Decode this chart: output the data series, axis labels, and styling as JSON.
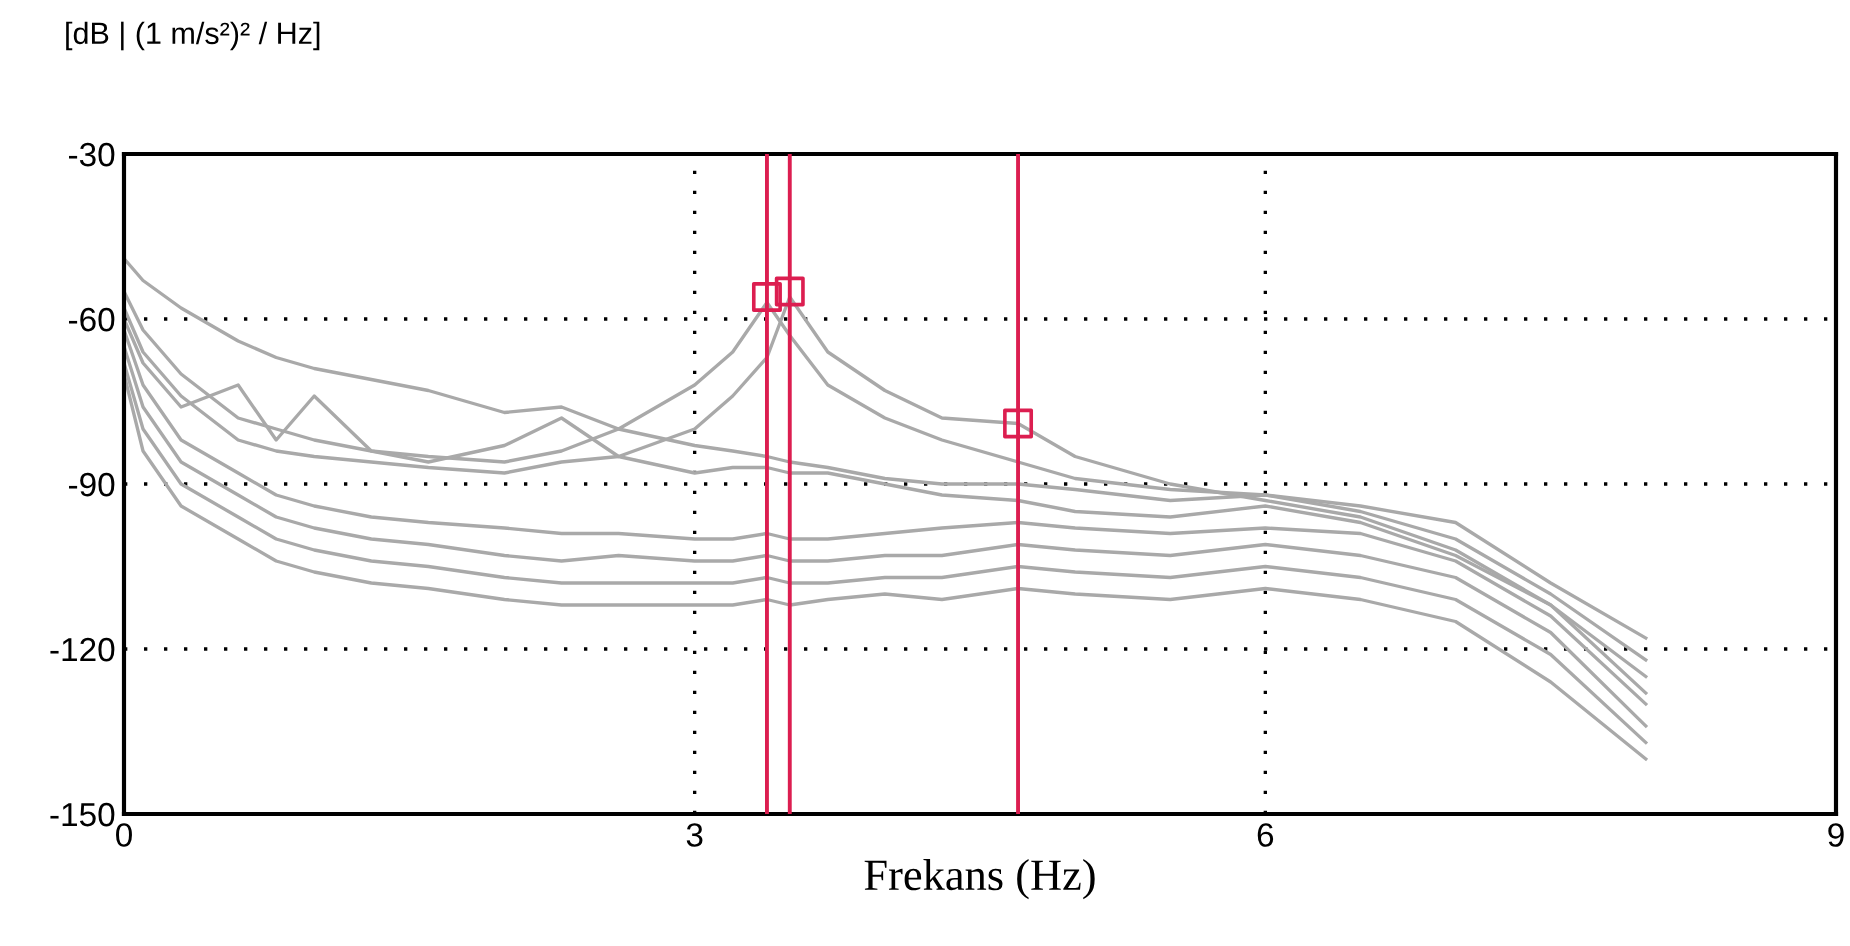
{
  "chart_data": {
    "type": "line",
    "ylabel": "[dB | (1 m/s²)² / Hz]",
    "xlabel": "Frekans (Hz)",
    "x": [
      0,
      0.1,
      0.3,
      0.6,
      0.8,
      1,
      1.3,
      1.6,
      2,
      2.3,
      2.6,
      3,
      3.2,
      3.38,
      3.5,
      3.7,
      4,
      4.3,
      4.7,
      5,
      5.5,
      6,
      6.5,
      7,
      7.5,
      8
    ],
    "xlim": [
      0,
      9
    ],
    "xticks": [
      0,
      3,
      6,
      9
    ],
    "ylim": [
      -150,
      -30
    ],
    "yticks": [
      -150,
      -120,
      -90,
      -60,
      -30
    ],
    "grid": true,
    "line_style": "solid",
    "series": [
      {
        "color": "#a9a9a9",
        "values": [
          -49,
          -53,
          -58,
          -64,
          -67,
          -69,
          -71,
          -73,
          -77,
          -76,
          -80,
          -83,
          -84,
          -85,
          -86,
          -87,
          -89,
          -90,
          -90,
          -91,
          -93,
          -92,
          -94,
          -97,
          -108,
          -118
        ]
      },
      {
        "color": "#a9a9a9",
        "values": [
          -55,
          -62,
          -70,
          -78,
          -80,
          -82,
          -84,
          -85,
          -86,
          -84,
          -80,
          -72,
          -66,
          -57,
          -63,
          -72,
          -78,
          -82,
          -86,
          -89,
          -91,
          -92,
          -95,
          -100,
          -110,
          -122
        ]
      },
      {
        "color": "#a9a9a9",
        "values": [
          -58,
          -66,
          -74,
          -82,
          -84,
          -85,
          -86,
          -87,
          -88,
          -86,
          -85,
          -80,
          -74,
          -67,
          -56,
          -66,
          -73,
          -78,
          -79,
          -85,
          -90,
          -93,
          -96,
          -102,
          -112,
          -125
        ]
      },
      {
        "color": "#a9a9a9",
        "values": [
          -60,
          -68,
          -76,
          -72,
          -82,
          -74,
          -84,
          -86,
          -83,
          -78,
          -85,
          -88,
          -87,
          -87,
          -88,
          -88,
          -90,
          -92,
          -93,
          -95,
          -96,
          -94,
          -97,
          -103,
          -112,
          -128
        ]
      },
      {
        "color": "#a9a9a9",
        "values": [
          -62,
          -72,
          -82,
          -88,
          -92,
          -94,
          -96,
          -97,
          -98,
          -99,
          -99,
          -100,
          -100,
          -99,
          -100,
          -100,
          -99,
          -98,
          -97,
          -98,
          -99,
          -98,
          -99,
          -104,
          -114,
          -130
        ]
      },
      {
        "color": "#a9a9a9",
        "values": [
          -65,
          -76,
          -86,
          -92,
          -96,
          -98,
          -100,
          -101,
          -103,
          -104,
          -103,
          -104,
          -104,
          -103,
          -104,
          -104,
          -103,
          -103,
          -101,
          -102,
          -103,
          -101,
          -103,
          -107,
          -117,
          -134
        ]
      },
      {
        "color": "#a9a9a9",
        "values": [
          -68,
          -80,
          -90,
          -96,
          -100,
          -102,
          -104,
          -105,
          -107,
          -108,
          -108,
          -108,
          -108,
          -107,
          -108,
          -108,
          -107,
          -107,
          -105,
          -106,
          -107,
          -105,
          -107,
          -111,
          -121,
          -137
        ]
      },
      {
        "color": "#a9a9a9",
        "values": [
          -70,
          -84,
          -94,
          -100,
          -104,
          -106,
          -108,
          -109,
          -111,
          -112,
          -112,
          -112,
          -112,
          -111,
          -112,
          -111,
          -110,
          -111,
          -109,
          -110,
          -111,
          -109,
          -111,
          -115,
          -126,
          -140
        ]
      },
      {
        "type": "scatter",
        "marker": "square",
        "color": "#dc1e50",
        "x": [
          3.38,
          3.5,
          4.7
        ],
        "values": [
          -56,
          -55,
          -79
        ]
      }
    ],
    "ref_lines": [
      {
        "axis": "x",
        "value": 3.38,
        "color": "#dc1e50"
      },
      {
        "axis": "x",
        "value": 3.5,
        "color": "#dc1e50"
      },
      {
        "axis": "x",
        "value": 4.7,
        "color": "#dc1e50"
      }
    ]
  }
}
